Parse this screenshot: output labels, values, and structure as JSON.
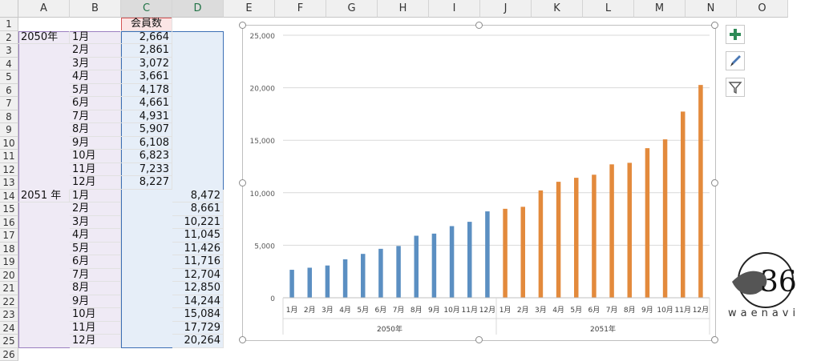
{
  "columns": [
    "A",
    "B",
    "C",
    "D",
    "E",
    "F",
    "G",
    "H",
    "I",
    "J",
    "K",
    "L",
    "M",
    "N",
    "O"
  ],
  "rows": [
    "1",
    "2",
    "3",
    "4",
    "5",
    "6",
    "7",
    "8",
    "9",
    "10",
    "11",
    "12",
    "13",
    "14",
    "15",
    "16",
    "17",
    "18",
    "19",
    "20",
    "21",
    "22",
    "23",
    "24",
    "25",
    "26"
  ],
  "header_cell": "会員数",
  "years": [
    "2050年",
    "2051 年"
  ],
  "months": [
    "1月",
    "2月",
    "3月",
    "4月",
    "5月",
    "6月",
    "7月",
    "8月",
    "9月",
    "10月",
    "11月",
    "12月"
  ],
  "c_values": [
    "2,664",
    "2,861",
    "3,072",
    "3,661",
    "4,178",
    "4,661",
    "4,931",
    "5,907",
    "6,108",
    "6,823",
    "7,233",
    "8,227"
  ],
  "d_values": [
    "8,472",
    "8,661",
    "10,221",
    "11,045",
    "11,426",
    "11,716",
    "12,704",
    "12,850",
    "14,244",
    "15,084",
    "17,729",
    "20,264"
  ],
  "colors": {
    "series1": "#5b8fc2",
    "series2": "#e38a3c",
    "selC": "#e6eef8",
    "selD": "#e6eef8",
    "selAB": "#efeaf5"
  },
  "icons": [
    "plus-icon",
    "brush-icon",
    "filter-icon"
  ],
  "logo_text": "waenavi",
  "chart_data": {
    "type": "bar",
    "categories": [
      "1月",
      "2月",
      "3月",
      "4月",
      "5月",
      "6月",
      "7月",
      "8月",
      "9月",
      "10月",
      "11月",
      "12月",
      "1月",
      "2月",
      "3月",
      "4月",
      "5月",
      "6月",
      "7月",
      "8月",
      "9月",
      "10月",
      "11月",
      "12月"
    ],
    "groups": [
      "2050年",
      "2051年"
    ],
    "series": [
      {
        "values": [
          2664,
          2861,
          3072,
          3661,
          4178,
          4661,
          4931,
          5907,
          6108,
          6823,
          7233,
          8227,
          null,
          null,
          null,
          null,
          null,
          null,
          null,
          null,
          null,
          null,
          null,
          null
        ]
      },
      {
        "values": [
          null,
          null,
          null,
          null,
          null,
          null,
          null,
          null,
          null,
          null,
          null,
          null,
          8472,
          8661,
          10221,
          11045,
          11426,
          11716,
          12704,
          12850,
          14244,
          15084,
          17729,
          20264
        ]
      }
    ],
    "yticks": [
      "0",
      "5,000",
      "10,000",
      "15,000",
      "20,000",
      "25,000"
    ],
    "ylim": [
      0,
      25000
    ],
    "grid": true
  }
}
